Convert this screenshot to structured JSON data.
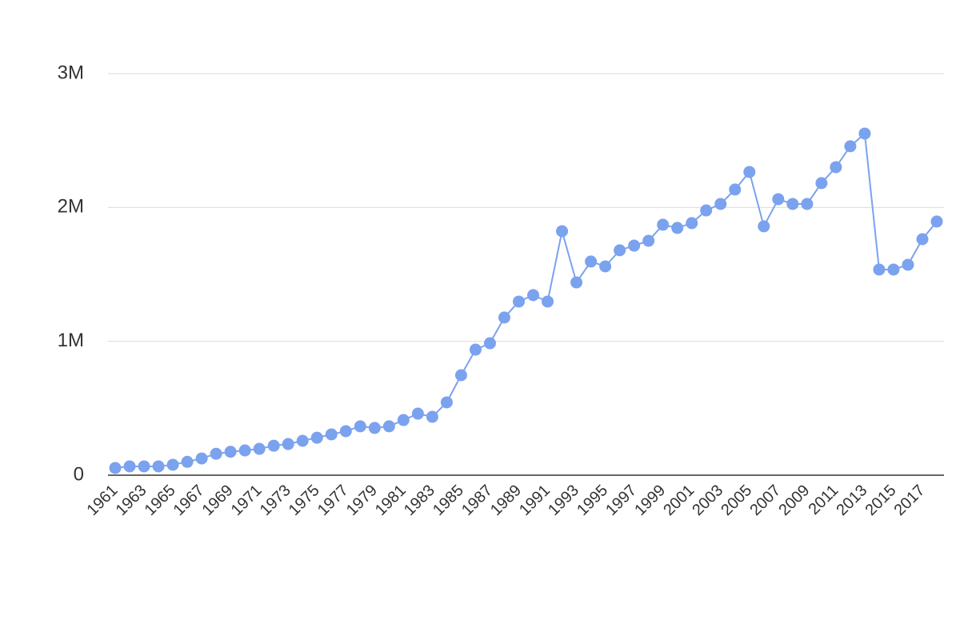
{
  "chart_data": {
    "type": "line",
    "x": [
      1961,
      1962,
      1963,
      1964,
      1965,
      1966,
      1967,
      1968,
      1969,
      1970,
      1971,
      1972,
      1973,
      1974,
      1975,
      1976,
      1977,
      1978,
      1979,
      1980,
      1981,
      1982,
      1983,
      1984,
      1985,
      1986,
      1987,
      1988,
      1989,
      1990,
      1991,
      1992,
      1993,
      1994,
      1995,
      1996,
      1997,
      1998,
      1999,
      2000,
      2001,
      2002,
      2003,
      2004,
      2005,
      2006,
      2007,
      2008,
      2009,
      2010,
      2011,
      2012,
      2013,
      2014,
      2015,
      2016,
      2017,
      2018
    ],
    "values": [
      54000,
      66000,
      66000,
      66000,
      78000,
      100000,
      125000,
      160000,
      175000,
      185000,
      197000,
      220000,
      233000,
      257000,
      280000,
      305000,
      329000,
      365000,
      353000,
      365000,
      412000,
      460000,
      436000,
      544000,
      747000,
      938000,
      986000,
      1178000,
      1297000,
      1345000,
      1297000,
      1823000,
      1440000,
      1596000,
      1560000,
      1680000,
      1715000,
      1751000,
      1871000,
      1847000,
      1883000,
      1978000,
      2026000,
      2134000,
      2265000,
      1859000,
      2062000,
      2026000,
      2026000,
      2182000,
      2301000,
      2457000,
      2552000,
      1536000,
      1536000,
      1572000,
      1763000,
      1895000
    ],
    "color": "#7ba2ee",
    "xlim": [
      1960.5,
      2018.5
    ],
    "xticks": [
      1961,
      1963,
      1965,
      1967,
      1969,
      1971,
      1973,
      1975,
      1977,
      1979,
      1981,
      1983,
      1985,
      1987,
      1989,
      1991,
      1993,
      1995,
      1997,
      1999,
      2001,
      2003,
      2005,
      2007,
      2009,
      2011,
      2013,
      2015,
      2017
    ],
    "ylim": [
      0,
      3000000
    ],
    "yticks": [
      0,
      {
        "value": 1000000,
        "label": "1M"
      },
      {
        "value": 2000000,
        "label": "2M"
      },
      {
        "value": 3000000,
        "label": "3M"
      }
    ],
    "grid": true
  }
}
